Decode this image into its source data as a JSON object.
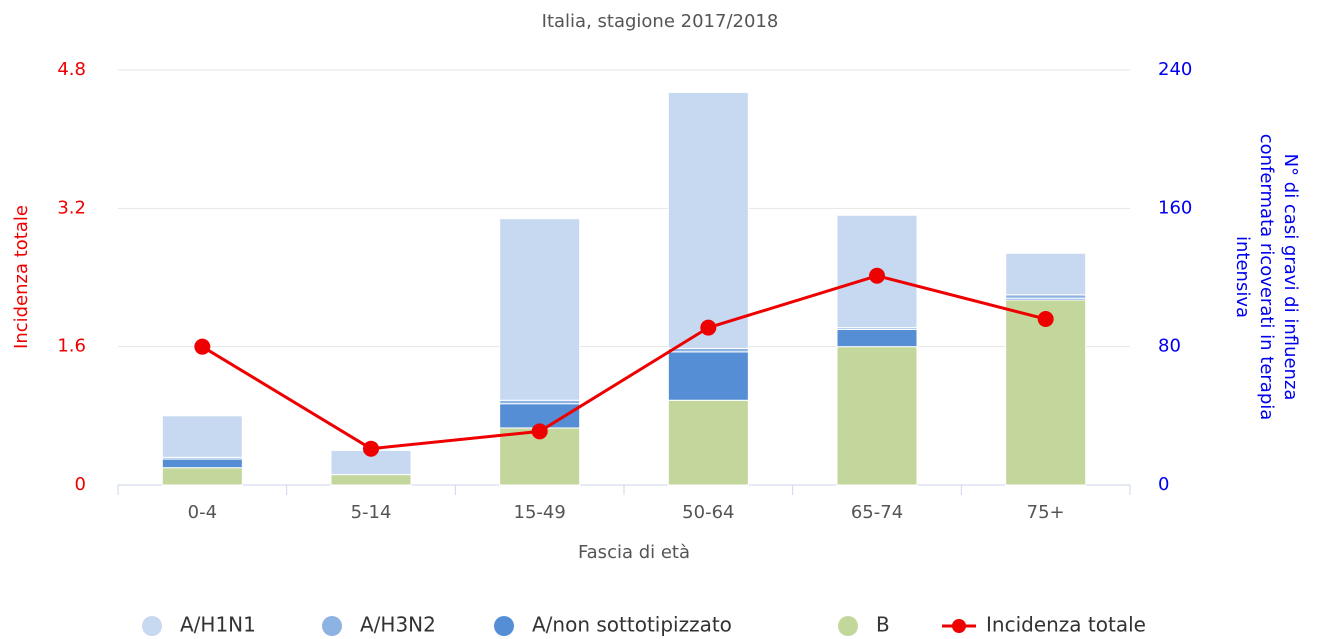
{
  "chart_data": {
    "type": "bar",
    "title": "Italia, stagione 2017/2018",
    "x_label": "Fascia di età",
    "y_label": "Incidenza totale",
    "y2_label": [
      "N° di casi gravi di influenza",
      "confermata ricoverati in terapia",
      "intensiva"
    ],
    "categories": [
      "0-4",
      "5-14",
      "15-49",
      "50-64",
      "65-74",
      "75+"
    ],
    "series": [
      {
        "name": "A/H1N1",
        "type": "bar",
        "axis": "y2",
        "color": "#c6d9f0",
        "values": [
          24,
          14,
          105,
          148,
          65,
          24
        ]
      },
      {
        "name": "A/H3N2",
        "type": "bar",
        "axis": "y2",
        "color": "#8db3e2",
        "values": [
          1,
          0,
          2,
          2,
          1,
          2
        ]
      },
      {
        "name": "A/non sottotipizzato",
        "type": "bar",
        "axis": "y2",
        "color": "#558ed5",
        "values": [
          5,
          0,
          14,
          28,
          10,
          1
        ]
      },
      {
        "name": "B",
        "type": "bar",
        "axis": "y2",
        "color": "#c3d69b",
        "values": [
          10,
          6,
          33,
          49,
          80,
          107
        ]
      },
      {
        "name": "Incidenza totale",
        "type": "line",
        "axis": "y",
        "color": "#ee0000",
        "values": [
          1.6,
          0.42,
          0.62,
          1.82,
          2.42,
          1.92
        ]
      }
    ],
    "ylim": [
      0,
      4.8
    ],
    "yticks": [
      0,
      1.6,
      3.2,
      4.8
    ],
    "y_color": "#ee0000",
    "y2lim": [
      0,
      240
    ],
    "y2ticks": [
      0,
      80,
      160,
      240
    ],
    "y2_color": "#0000ee",
    "grid": true,
    "legend": "bottom"
  }
}
